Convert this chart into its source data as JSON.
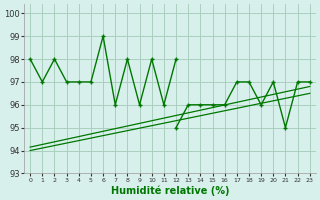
{
  "xlabel": "Humidité relative (%)",
  "background_color": "#d8f0ec",
  "grid_color": "#aacfbf",
  "line_color": "#007700",
  "xlim": [
    -0.5,
    23.5
  ],
  "ylim": [
    93,
    100.4
  ],
  "yticks": [
    93,
    94,
    95,
    96,
    97,
    98,
    99,
    100
  ],
  "xtick_labels": [
    "0",
    "1",
    "2",
    "3",
    "4",
    "5",
    "6",
    "7",
    "8",
    "9",
    "10",
    "11",
    "12",
    "13",
    "14",
    "15",
    "16",
    "17",
    "18",
    "19",
    "20",
    "21",
    "22",
    "23"
  ],
  "line1_x": [
    0,
    1,
    2,
    3,
    4,
    5,
    6,
    7,
    8,
    9,
    10,
    11,
    12
  ],
  "line1_y": [
    98,
    97,
    98,
    97,
    97,
    97,
    99,
    96,
    98,
    96,
    98,
    96,
    98
  ],
  "line2_x": [
    12,
    13,
    14,
    15,
    16,
    17,
    18,
    19,
    20,
    21,
    22,
    23
  ],
  "line2_y": [
    95,
    96,
    96,
    96,
    96,
    97,
    97,
    96,
    97,
    95,
    97,
    97
  ],
  "trend1_x": [
    0,
    23
  ],
  "trend1_y": [
    94.0,
    96.5
  ],
  "trend2_x": [
    0,
    23
  ],
  "trend2_y": [
    94.15,
    96.8
  ],
  "figsize": [
    3.2,
    2.0
  ],
  "dpi": 100
}
